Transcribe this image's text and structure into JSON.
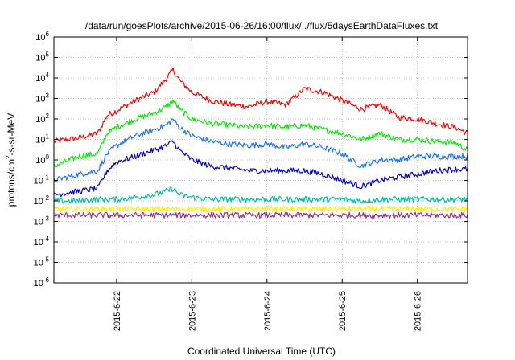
{
  "chart_data": {
    "type": "line",
    "title": "/data/run/goesPlots/archive/2015-06-26/16:00/flux/../flux/5daysEarthDataFluxes.txt",
    "xlabel": "Coordinated Universal Time (UTC)",
    "ylabel_main": "protons/cm",
    "ylabel_sup": "2",
    "ylabel_rest": "-s-sr-MeV",
    "yscale": "log",
    "ylim": [
      1e-06,
      1000000.0
    ],
    "y_tick_labels": [
      {
        "base": "10",
        "exp": "-6",
        "value": -6
      },
      {
        "base": "10",
        "exp": "-5",
        "value": -5
      },
      {
        "base": "10",
        "exp": "-4",
        "value": -4
      },
      {
        "base": "10",
        "exp": "-3",
        "value": -3
      },
      {
        "base": "10",
        "exp": "-2",
        "value": -2
      },
      {
        "base": "10",
        "exp": "-1",
        "value": -1
      },
      {
        "base": "10",
        "exp": "0",
        "value": 0
      },
      {
        "base": "10",
        "exp": "1",
        "value": 1
      },
      {
        "base": "10",
        "exp": "2",
        "value": 2
      },
      {
        "base": "10",
        "exp": "3",
        "value": 3
      },
      {
        "base": "10",
        "exp": "4",
        "value": 4
      },
      {
        "base": "10",
        "exp": "5",
        "value": 5
      },
      {
        "base": "10",
        "exp": "6",
        "value": 6
      }
    ],
    "xlim": [
      "2015-06-21 04:00",
      "2015-06-26 16:00"
    ],
    "x_tick_labels": [
      {
        "label": "2015-6-22",
        "date": "2015-06-22"
      },
      {
        "label": "2015-6-23",
        "date": "2015-06-23"
      },
      {
        "label": "2015-6-24",
        "date": "2015-06-24"
      },
      {
        "label": "2015-6-25",
        "date": "2015-06-25"
      },
      {
        "label": "2015-6-26",
        "date": "2015-06-26"
      }
    ],
    "grid": true,
    "legend": "none",
    "x": [
      "2015-06-21 04:00",
      "2015-06-21 12:00",
      "2015-06-21 18:00",
      "2015-06-21 21:00",
      "2015-06-22 00:00",
      "2015-06-22 06:00",
      "2015-06-22 12:00",
      "2015-06-22 16:00",
      "2015-06-22 18:00",
      "2015-06-22 20:00",
      "2015-06-23 00:00",
      "2015-06-23 06:00",
      "2015-06-23 12:00",
      "2015-06-23 18:00",
      "2015-06-24 00:00",
      "2015-06-24 06:00",
      "2015-06-24 12:00",
      "2015-06-24 18:00",
      "2015-06-25 00:00",
      "2015-06-25 06:00",
      "2015-06-25 12:00",
      "2015-06-25 18:00",
      "2015-06-26 00:00",
      "2015-06-26 06:00",
      "2015-06-26 12:00",
      "2015-06-26 16:00"
    ],
    "series": [
      {
        "color": "#ff0000",
        "values": [
          8,
          12,
          20,
          150,
          250,
          800,
          2000,
          10000,
          25000,
          8000,
          2000,
          800,
          500,
          400,
          700,
          500,
          3000,
          2000,
          800,
          300,
          500,
          120,
          100,
          60,
          40,
          20
        ]
      },
      {
        "color": "#00ee00",
        "values": [
          0.5,
          1.5,
          2,
          20,
          40,
          100,
          200,
          400,
          800,
          300,
          100,
          60,
          50,
          40,
          50,
          40,
          50,
          30,
          20,
          10,
          20,
          10,
          10,
          8,
          7,
          3
        ]
      },
      {
        "color": "#1e6fff",
        "values": [
          0.1,
          0.2,
          0.3,
          2,
          5,
          15,
          30,
          50,
          100,
          40,
          15,
          8,
          6,
          5,
          6,
          4,
          6,
          4,
          2,
          0.5,
          1,
          1,
          1.5,
          1.5,
          1.5,
          1.5
        ]
      },
      {
        "color": "#0000cc",
        "values": [
          0.02,
          0.03,
          0.04,
          0.3,
          0.8,
          1.5,
          3,
          5,
          8,
          3,
          1,
          0.5,
          0.4,
          0.3,
          0.3,
          0.3,
          0.3,
          0.2,
          0.1,
          0.05,
          0.1,
          0.15,
          0.2,
          0.3,
          0.35,
          0.35
        ]
      },
      {
        "color": "#00c0a0",
        "values": [
          0.01,
          0.01,
          0.012,
          0.012,
          0.012,
          0.015,
          0.02,
          0.03,
          0.04,
          0.02,
          0.015,
          0.012,
          0.012,
          0.012,
          0.012,
          0.012,
          0.012,
          0.012,
          0.012,
          0.01,
          0.012,
          0.012,
          0.012,
          0.012,
          0.012,
          0.012
        ]
      },
      {
        "color": "#ffee00",
        "values": [
          0.004,
          0.004,
          0.004,
          0.004,
          0.004,
          0.004,
          0.004,
          0.004,
          0.004,
          0.004,
          0.004,
          0.004,
          0.004,
          0.004,
          0.004,
          0.004,
          0.004,
          0.004,
          0.004,
          0.004,
          0.004,
          0.004,
          0.004,
          0.004,
          0.004,
          0.004
        ]
      },
      {
        "color": "#993377",
        "values": [
          0.002,
          0.002,
          0.002,
          0.002,
          0.002,
          0.002,
          0.002,
          0.002,
          0.002,
          0.002,
          0.002,
          0.002,
          0.002,
          0.002,
          0.002,
          0.002,
          0.002,
          0.002,
          0.002,
          0.002,
          0.002,
          0.002,
          0.002,
          0.002,
          0.002,
          0.002
        ]
      }
    ]
  }
}
